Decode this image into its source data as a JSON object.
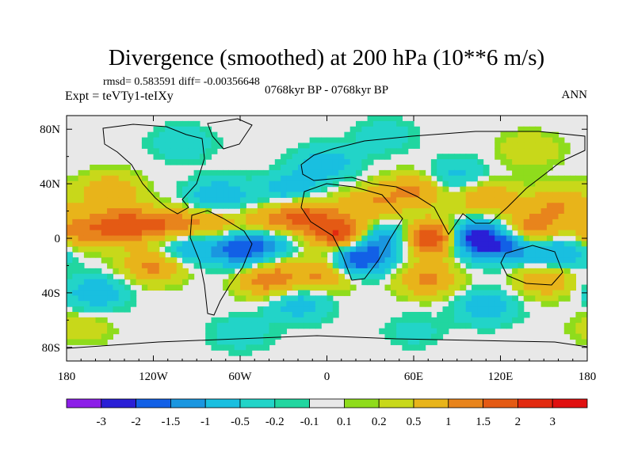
{
  "chart_data": {
    "type": "heatmap",
    "title": "Divergence (smoothed) at 200 hPa (10**6 m/s)",
    "stats": "rmsd= 0.583591  diff= -0.00356648",
    "left_label": "Expt = teVTy1-teIXy",
    "center_label": "0768kyr BP - 0768kyr BP",
    "right_label": "ANN",
    "x_axis": {
      "range": [
        -180,
        180
      ],
      "ticks": [
        {
          "value": -180,
          "label": "180"
        },
        {
          "value": -120,
          "label": "120W"
        },
        {
          "value": -60,
          "label": "60W"
        },
        {
          "value": 0,
          "label": "0"
        },
        {
          "value": 60,
          "label": "60E"
        },
        {
          "value": 120,
          "label": "120E"
        },
        {
          "value": 180,
          "label": "180"
        }
      ]
    },
    "y_axis": {
      "range": [
        -90,
        90
      ],
      "ticks": [
        {
          "value": 80,
          "label": "80N"
        },
        {
          "value": 40,
          "label": "40N"
        },
        {
          "value": 0,
          "label": "0"
        },
        {
          "value": -40,
          "label": "40S"
        },
        {
          "value": -80,
          "label": "80S"
        }
      ]
    },
    "colorbar": {
      "labels": [
        "-3",
        "-2",
        "-1.5",
        "-1",
        "-0.5",
        "-0.2",
        "-0.1",
        "0.1",
        "0.2",
        "0.5",
        "1",
        "1.5",
        "2",
        "3"
      ],
      "colors": [
        "#8c1ee8",
        "#2a1fd6",
        "#1260e6",
        "#1a96e0",
        "#19bfe0",
        "#22d4c8",
        "#21d6a0",
        "#e8e8e8",
        "#8fdc1c",
        "#c8d81a",
        "#e8b41a",
        "#e8841c",
        "#e45a14",
        "#e22a10",
        "#e01010"
      ]
    },
    "features": [
      {
        "lon": -170,
        "lat": 5,
        "value": 1.2
      },
      {
        "lon": -140,
        "lat": 10,
        "value": 1.6
      },
      {
        "lon": -110,
        "lat": 8,
        "value": 1.4
      },
      {
        "lon": -80,
        "lat": 10,
        "value": 1.0
      },
      {
        "lon": -40,
        "lat": 10,
        "value": 1.2
      },
      {
        "lon": -15,
        "lat": 18,
        "value": 1.5
      },
      {
        "lon": 10,
        "lat": 2,
        "value": 2.2
      },
      {
        "lon": 30,
        "lat": 25,
        "value": 0.9
      },
      {
        "lon": 75,
        "lat": 0,
        "value": 2.6
      },
      {
        "lon": 140,
        "lat": 5,
        "value": 1.6
      },
      {
        "lon": 160,
        "lat": 25,
        "value": 1.0
      },
      {
        "lon": -150,
        "lat": 35,
        "value": 0.9
      },
      {
        "lon": 60,
        "lat": 35,
        "value": 1.1
      },
      {
        "lon": 110,
        "lat": 30,
        "value": 1.0
      },
      {
        "lon": -120,
        "lat": -20,
        "value": 1.2
      },
      {
        "lon": -40,
        "lat": -30,
        "value": 1.4
      },
      {
        "lon": 0,
        "lat": -25,
        "value": 1.3
      },
      {
        "lon": 70,
        "lat": -30,
        "value": 1.1
      },
      {
        "lon": 150,
        "lat": -30,
        "value": 1.0
      },
      {
        "lon": -60,
        "lat": -8,
        "value": -1.8
      },
      {
        "lon": -100,
        "lat": -5,
        "value": -1.2
      },
      {
        "lon": -40,
        "lat": 0,
        "value": -1.0
      },
      {
        "lon": 20,
        "lat": -15,
        "value": -2.3
      },
      {
        "lon": 40,
        "lat": 0,
        "value": -1.3
      },
      {
        "lon": 100,
        "lat": 0,
        "value": -2.6
      },
      {
        "lon": 125,
        "lat": -5,
        "value": -1.6
      },
      {
        "lon": 160,
        "lat": -10,
        "value": -1.2
      },
      {
        "lon": -75,
        "lat": 30,
        "value": -1.0
      },
      {
        "lon": -25,
        "lat": 35,
        "value": -0.9
      },
      {
        "lon": 0,
        "lat": 55,
        "value": -0.8
      },
      {
        "lon": 90,
        "lat": 45,
        "value": -0.7
      },
      {
        "lon": -160,
        "lat": -40,
        "value": -0.9
      },
      {
        "lon": -20,
        "lat": -48,
        "value": -0.8
      },
      {
        "lon": 110,
        "lat": -50,
        "value": -0.8
      },
      {
        "lon": -100,
        "lat": 70,
        "value": -0.5
      },
      {
        "lon": 40,
        "lat": 75,
        "value": -0.4
      },
      {
        "lon": -60,
        "lat": -70,
        "value": -0.4
      },
      {
        "lon": 60,
        "lat": -68,
        "value": -0.3
      },
      {
        "lon": -170,
        "lat": -65,
        "value": 0.4
      },
      {
        "lon": 140,
        "lat": 65,
        "value": 0.5
      }
    ]
  }
}
